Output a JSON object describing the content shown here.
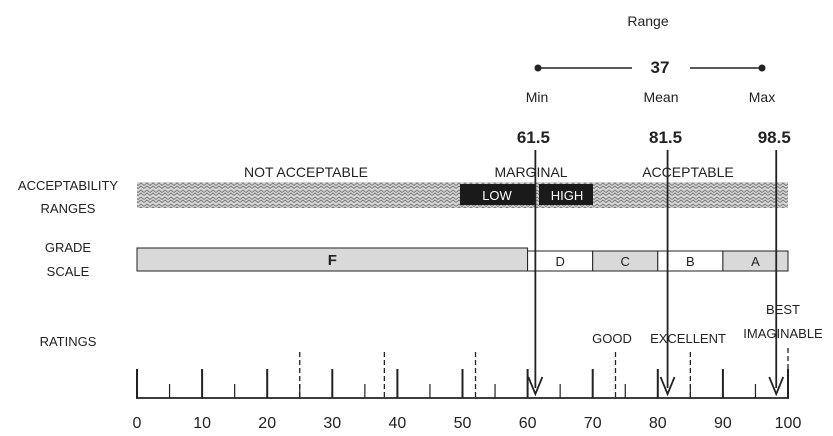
{
  "range": {
    "title": "Range",
    "value": "37",
    "min_label": "Min",
    "mean_label": "Mean",
    "max_label": "Max"
  },
  "markers": [
    {
      "label": "61.5",
      "value": 61.5
    },
    {
      "label": "81.5",
      "value": 81.5
    },
    {
      "label": "98.5",
      "value": 98.5
    }
  ],
  "acceptability": {
    "row_label_line1": "ACCEPTABILITY",
    "row_label_line2": "RANGES",
    "not_acceptable": "NOT ACCEPTABLE",
    "marginal": "MARGINAL",
    "acceptable": "ACCEPTABLE",
    "low": "LOW",
    "high": "HIGH"
  },
  "grade_scale": {
    "row_label_line1": "GRADE",
    "row_label_line2": "SCALE",
    "grades": [
      {
        "label": "F",
        "from": 0,
        "to": 60
      },
      {
        "label": "D",
        "from": 60,
        "to": 70
      },
      {
        "label": "C",
        "from": 70,
        "to": 80
      },
      {
        "label": "B",
        "from": 80,
        "to": 90
      },
      {
        "label": "A",
        "from": 90,
        "to": 100
      }
    ]
  },
  "ratings": {
    "row_label": "RATINGS",
    "good": "GOOD",
    "excellent": "EXCELLENT",
    "best_line1": "BEST",
    "best_line2": "IMAGINABLE"
  },
  "axis": {
    "ticks": [
      "0",
      "10",
      "20",
      "30",
      "40",
      "50",
      "60",
      "70",
      "80",
      "90",
      "100"
    ]
  },
  "colors": {
    "band_fill": "#d9d9d9",
    "dark_box": "#1a1a1a",
    "line": "#222222"
  }
}
